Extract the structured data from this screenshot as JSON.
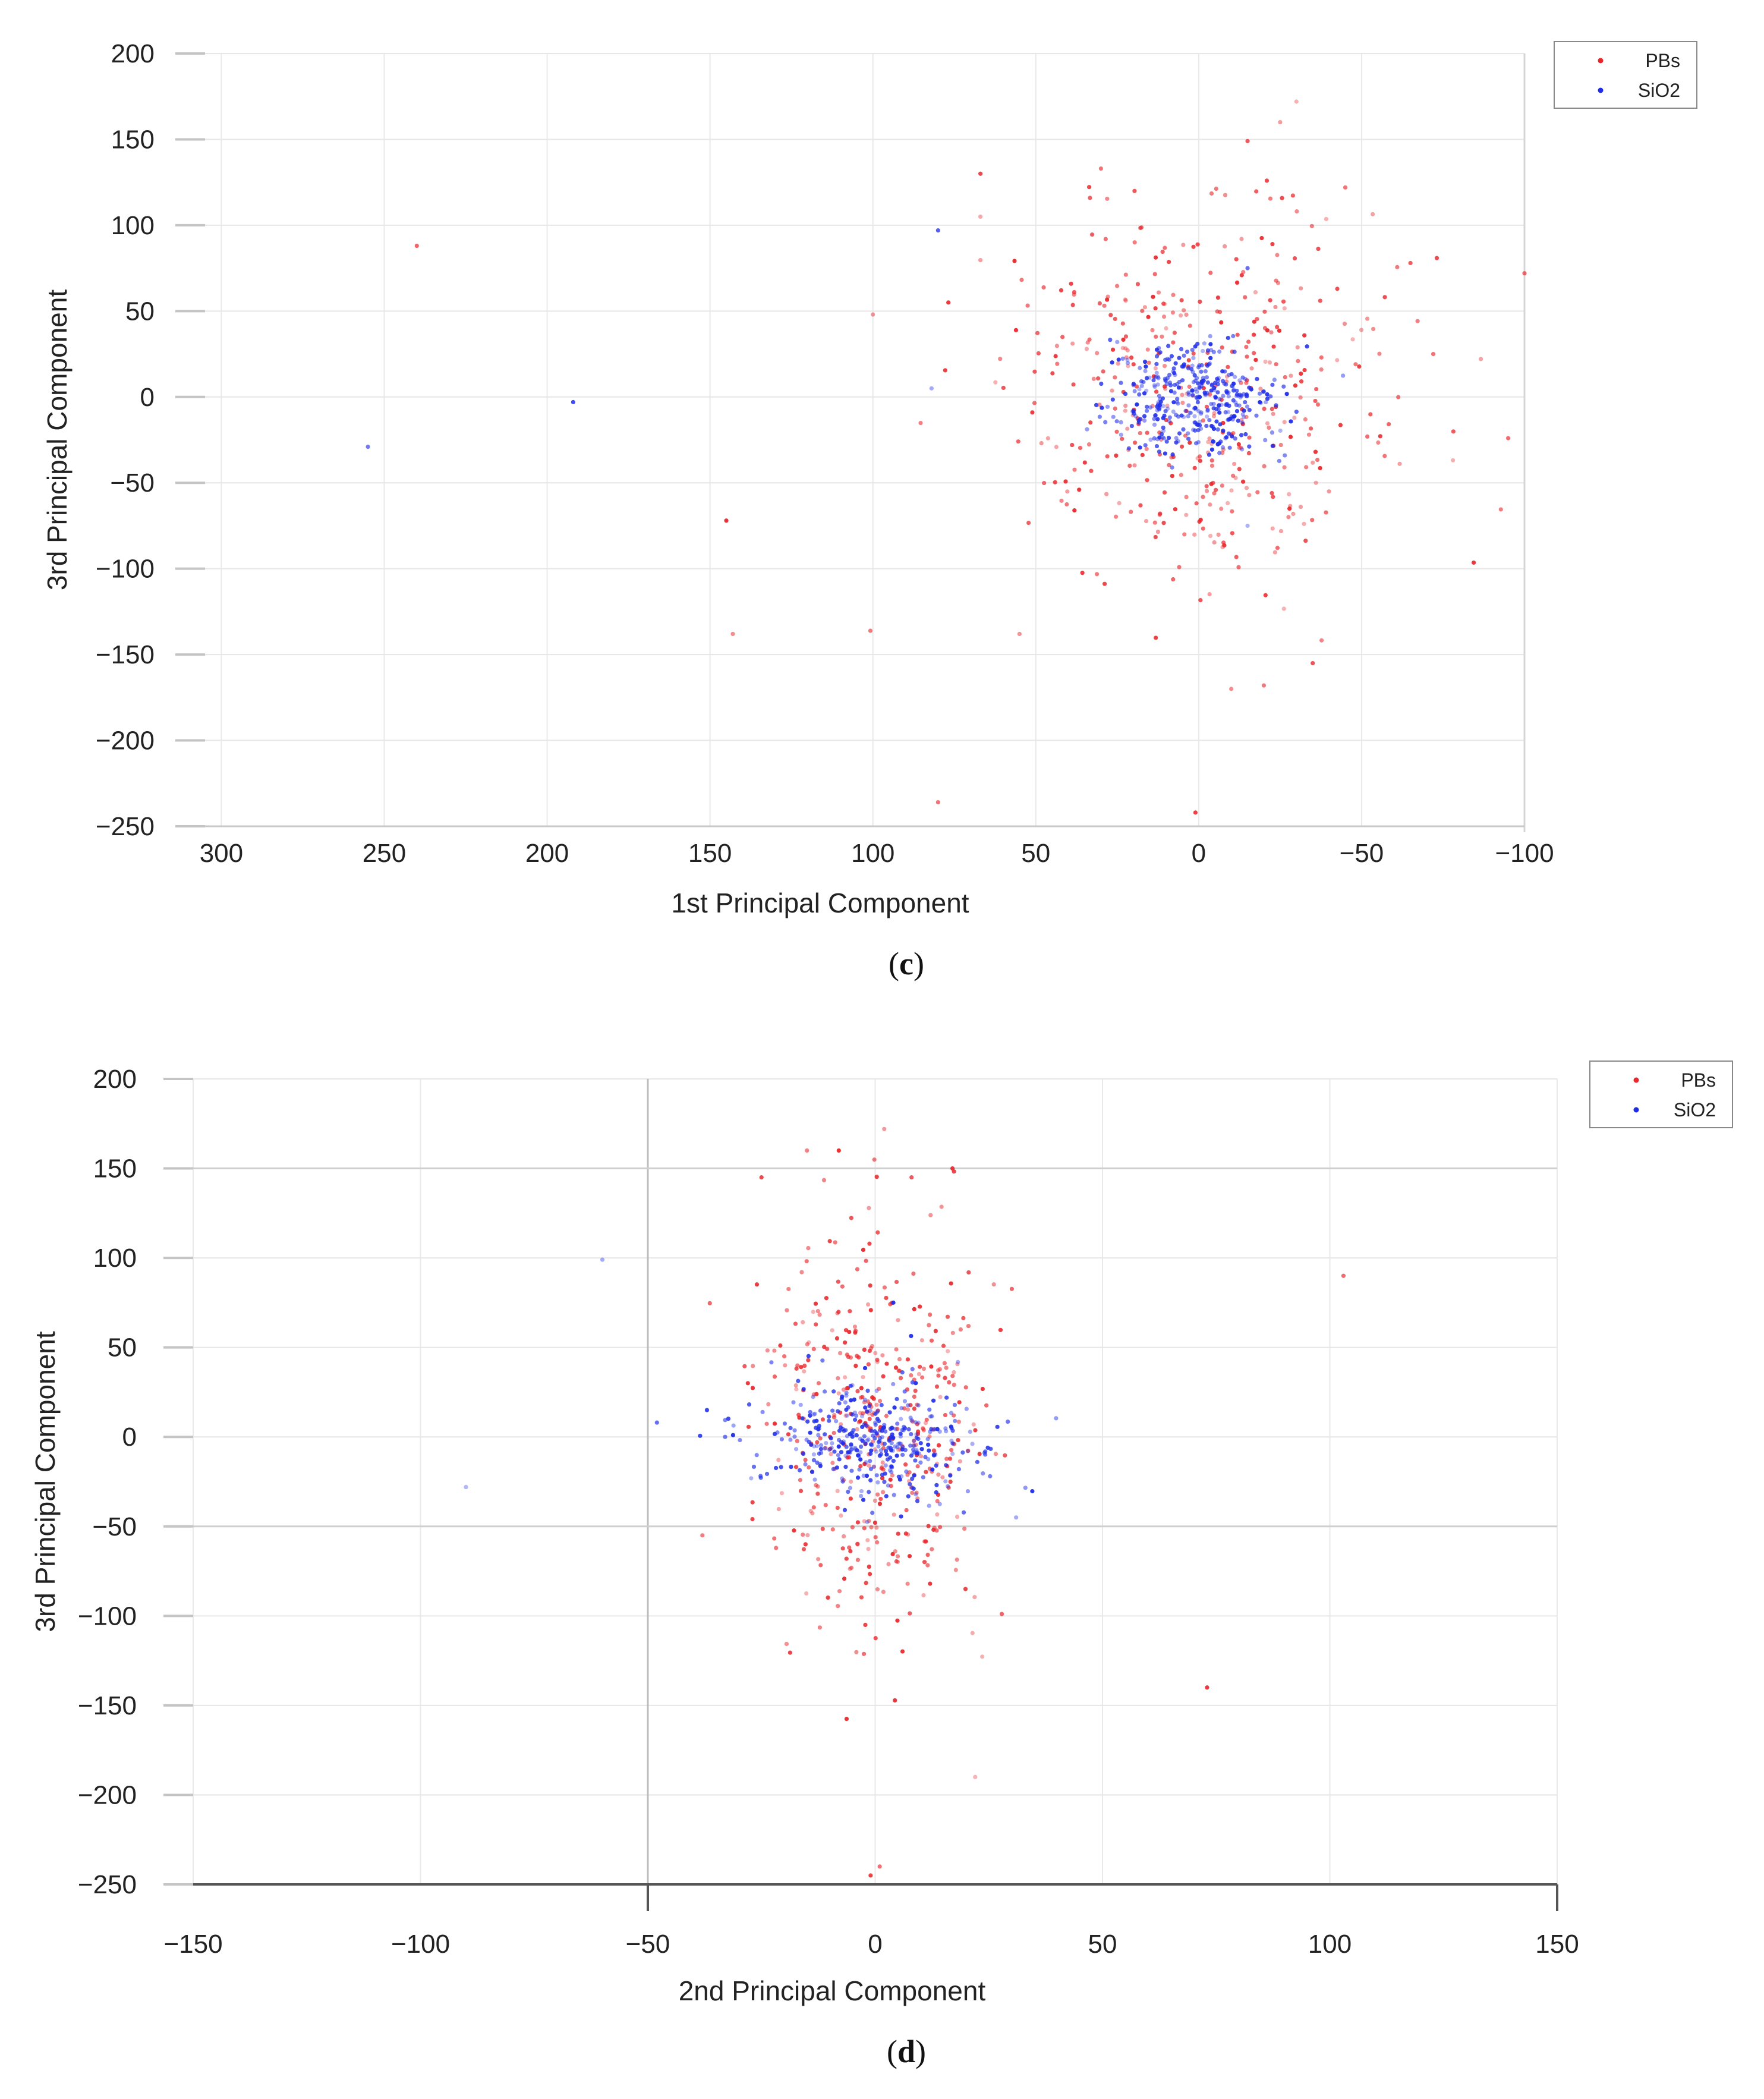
{
  "chart_data": [
    {
      "panel": "c",
      "type": "scatter",
      "caption_letter": "c",
      "xlabel": "1st Principal Component",
      "ylabel": "3rd Principal Component",
      "xlim": [
        305,
        -100
      ],
      "ylim": [
        -250,
        200
      ],
      "x_reversed": true,
      "xticks": [
        300,
        250,
        200,
        150,
        100,
        50,
        0,
        -50,
        -100
      ],
      "xtick_labels": [
        "300",
        "250",
        "200",
        "150",
        "100",
        "50",
        "0",
        "−50",
        "−100"
      ],
      "yticks": [
        200,
        150,
        100,
        50,
        0,
        -50,
        -100,
        -150,
        -200,
        -250
      ],
      "ytick_labels": [
        "200",
        "150",
        "100",
        "50",
        "0",
        "−50",
        "−100",
        "−150",
        "−200",
        "−250"
      ],
      "grid": true,
      "legend_position": "top-right",
      "series": [
        {
          "name": "PBs",
          "color": "#e8262b",
          "cluster": {
            "center": [
              0,
              0
            ],
            "sd": [
              30,
              55
            ],
            "count": 430
          },
          "points": [
            [
              240,
              88
            ],
            [
              145,
              -72
            ],
            [
              143,
              -138
            ],
            [
              80,
              -236
            ],
            [
              100,
              48
            ],
            [
              67,
              130
            ],
            [
              67,
              105
            ],
            [
              -100,
              72
            ],
            [
              -95,
              -24
            ],
            [
              -45,
              122
            ],
            [
              -30,
              172
            ],
            [
              -25,
              160
            ],
            [
              -35,
              -155
            ],
            [
              -40,
              -55
            ],
            [
              1,
              -242
            ],
            [
              -10,
              -170
            ],
            [
              -20,
              -168
            ],
            [
              55,
              -138
            ],
            [
              30,
              133
            ],
            [
              -15,
              149
            ],
            [
              -65,
              78
            ],
            [
              -72,
              25
            ]
          ]
        },
        {
          "name": "SiO2",
          "color": "#1f2de8",
          "cluster": {
            "center": [
              0,
              0
            ],
            "sd": [
              13,
              16
            ],
            "count": 380
          },
          "points": [
            [
              255,
              -29
            ],
            [
              192,
              -3
            ],
            [
              80,
              97
            ],
            [
              82,
              5
            ],
            [
              -15,
              75
            ],
            [
              -15,
              -75
            ],
            [
              25,
              32
            ]
          ]
        }
      ]
    },
    {
      "panel": "d",
      "type": "scatter",
      "caption_letter": "d",
      "xlabel": "2nd Principal Component",
      "ylabel": "3rd Principal Component",
      "xlim": [
        -150,
        150
      ],
      "ylim": [
        -250,
        200
      ],
      "x_reversed": false,
      "xticks": [
        -150,
        -100,
        -50,
        0,
        50,
        100,
        150
      ],
      "xtick_labels": [
        "−150",
        "−100",
        "−50",
        "0",
        "50",
        "100",
        "150"
      ],
      "yticks": [
        200,
        150,
        100,
        50,
        0,
        -50,
        -100,
        -150,
        -200,
        -250
      ],
      "ytick_labels": [
        "200",
        "150",
        "100",
        "50",
        "0",
        "−50",
        "−100",
        "−150",
        "−200",
        "−250"
      ],
      "grid": true,
      "legend_position": "top-right",
      "series": [
        {
          "name": "PBs",
          "color": "#e8262b",
          "cluster": {
            "center": [
              0,
              0
            ],
            "sd": [
              12,
              55
            ],
            "count": 430
          },
          "points": [
            [
              103,
              90
            ],
            [
              73,
              -140
            ],
            [
              17,
              150
            ],
            [
              2,
              172
            ],
            [
              -1,
              -245
            ],
            [
              1,
              -240
            ],
            [
              22,
              -190
            ],
            [
              -38,
              -55
            ],
            [
              -25,
              145
            ],
            [
              -15,
              160
            ],
            [
              -8,
              160
            ],
            [
              8,
              145
            ],
            [
              -28,
              30
            ]
          ]
        },
        {
          "name": "SiO2",
          "color": "#1f2de8",
          "cluster": {
            "center": [
              0,
              0
            ],
            "sd": [
              12,
              16
            ],
            "count": 380
          },
          "points": [
            [
              -60,
              99
            ],
            [
              -90,
              -28
            ],
            [
              -48,
              8
            ],
            [
              -37,
              15
            ],
            [
              31,
              -45
            ],
            [
              4,
              75
            ],
            [
              -33,
              0
            ]
          ]
        }
      ]
    }
  ]
}
